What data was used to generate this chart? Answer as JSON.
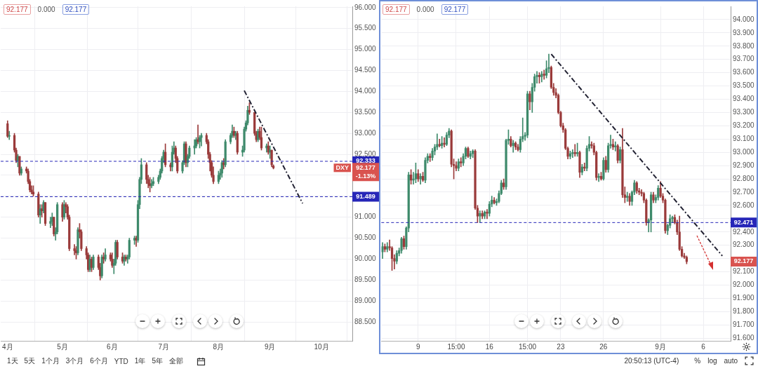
{
  "chart_data": [
    {
      "type": "candlestick",
      "x": [
        "--04-01",
        "--04-02",
        "--04-05",
        "--04-06",
        "--04-07",
        "--04-08",
        "--04-09",
        "--04-12",
        "--04-13",
        "--04-14",
        "--04-15",
        "--04-16",
        "--04-19",
        "--04-20",
        "--04-21",
        "--04-22",
        "--04-23",
        "--04-26",
        "--04-27",
        "--04-28",
        "--04-29",
        "--04-30",
        "--05-03",
        "--05-04",
        "--05-05",
        "--05-06",
        "--05-07",
        "--05-10",
        "--05-11",
        "--05-12",
        "--05-13",
        "--05-14",
        "--05-17",
        "--05-18",
        "--05-19",
        "--05-20",
        "--05-21",
        "--05-24",
        "--05-25",
        "--05-26",
        "--05-27",
        "--05-28",
        "--05-31",
        "--06-01",
        "--06-02",
        "--06-03",
        "--06-04",
        "--06-07",
        "--06-08",
        "--06-09",
        "--06-10",
        "--06-11",
        "--06-14",
        "--06-15",
        "--06-16",
        "--06-17",
        "--06-18",
        "--06-21",
        "--06-22",
        "--06-23",
        "--06-24",
        "--06-25",
        "--06-28",
        "--06-29",
        "--06-30",
        "--07-01",
        "--07-02",
        "--07-05",
        "--07-06",
        "--07-07",
        "--07-08",
        "--07-09",
        "--07-12",
        "--07-13",
        "--07-14",
        "--07-15",
        "--07-16",
        "--07-19",
        "--07-20",
        "--07-21",
        "--07-22",
        "--07-23",
        "--07-26",
        "--07-27",
        "--07-28",
        "--07-29",
        "--07-30",
        "--08-02",
        "--08-03",
        "--08-04",
        "--08-05",
        "--08-06",
        "--08-09",
        "--08-10",
        "--08-11",
        "--08-12",
        "--08-13",
        "--08-16",
        "--08-17",
        "--08-18",
        "--08-19",
        "--08-20",
        "--08-23",
        "--08-24",
        "--08-25",
        "--08-26",
        "--08-27",
        "--08-30",
        "--08-31",
        "--09-01",
        "--09-02",
        "--09-03"
      ],
      "ohlc": [
        [
          93.23,
          93.3,
          92.9,
          92.93
        ],
        [
          92.93,
          93.05,
          92.85,
          92.95
        ],
        [
          92.95,
          93.0,
          92.55,
          92.6
        ],
        [
          92.6,
          92.65,
          92.3,
          92.35
        ],
        [
          92.35,
          92.5,
          92.2,
          92.45
        ],
        [
          92.45,
          92.45,
          92.0,
          92.05
        ],
        [
          92.05,
          92.2,
          92.0,
          92.15
        ],
        [
          92.15,
          92.2,
          92.05,
          92.1
        ],
        [
          92.1,
          92.15,
          91.8,
          91.85
        ],
        [
          91.85,
          91.9,
          91.6,
          91.65
        ],
        [
          91.65,
          91.75,
          91.55,
          91.6
        ],
        [
          91.6,
          91.75,
          91.5,
          91.55
        ],
        [
          91.55,
          91.6,
          91.0,
          91.05
        ],
        [
          91.05,
          91.3,
          90.85,
          91.2
        ],
        [
          91.2,
          91.3,
          91.0,
          91.15
        ],
        [
          91.15,
          91.4,
          91.1,
          91.35
        ],
        [
          91.35,
          91.35,
          90.8,
          90.85
        ],
        [
          90.85,
          91.0,
          90.75,
          90.9
        ],
        [
          90.9,
          91.1,
          90.8,
          91.0
        ],
        [
          91.0,
          91.0,
          90.55,
          90.6
        ],
        [
          90.6,
          90.75,
          90.45,
          90.65
        ],
        [
          90.65,
          91.35,
          90.6,
          91.3
        ],
        [
          91.3,
          91.35,
          90.9,
          91.0
        ],
        [
          91.0,
          91.4,
          90.95,
          91.3
        ],
        [
          91.3,
          91.35,
          91.1,
          91.25
        ],
        [
          91.25,
          91.3,
          90.95,
          91.0
        ],
        [
          91.0,
          91.05,
          90.2,
          90.25
        ],
        [
          90.25,
          90.35,
          90.1,
          90.2
        ],
        [
          90.2,
          90.3,
          90.0,
          90.15
        ],
        [
          90.15,
          90.75,
          90.1,
          90.7
        ],
        [
          90.7,
          90.85,
          90.5,
          90.65
        ],
        [
          90.65,
          90.7,
          90.2,
          90.25
        ],
        [
          90.25,
          90.3,
          90.0,
          90.1
        ],
        [
          90.1,
          90.15,
          89.7,
          89.75
        ],
        [
          89.75,
          90.1,
          89.7,
          90.0
        ],
        [
          90.0,
          90.05,
          89.7,
          89.8
        ],
        [
          89.8,
          90.1,
          89.75,
          90.05
        ],
        [
          90.05,
          90.1,
          89.75,
          89.8
        ],
        [
          89.8,
          89.9,
          89.5,
          89.6
        ],
        [
          89.6,
          90.1,
          89.55,
          90.05
        ],
        [
          90.05,
          90.15,
          89.9,
          90.0
        ],
        [
          90.0,
          90.25,
          89.95,
          90.1
        ],
        [
          90.1,
          90.15,
          89.95,
          90.0
        ],
        [
          90.0,
          90.15,
          89.8,
          89.85
        ],
        [
          89.85,
          90.0,
          89.65,
          89.9
        ],
        [
          89.9,
          90.45,
          89.85,
          90.4
        ],
        [
          90.4,
          90.45,
          90.0,
          90.05
        ],
        [
          90.05,
          90.15,
          89.9,
          89.95
        ],
        [
          89.95,
          90.1,
          89.85,
          90.05
        ],
        [
          90.05,
          90.1,
          89.95,
          90.0
        ],
        [
          90.0,
          90.1,
          89.9,
          90.05
        ],
        [
          90.05,
          90.5,
          90.0,
          90.45
        ],
        [
          90.45,
          90.55,
          90.35,
          90.5
        ],
        [
          90.5,
          90.55,
          90.3,
          90.45
        ],
        [
          90.45,
          91.4,
          90.4,
          91.3
        ],
        [
          91.3,
          91.95,
          91.2,
          91.9
        ],
        [
          91.9,
          92.4,
          91.8,
          92.25
        ],
        [
          92.25,
          92.3,
          91.8,
          91.9
        ],
        [
          91.9,
          92.0,
          91.7,
          91.8
        ],
        [
          91.8,
          91.95,
          91.6,
          91.75
        ],
        [
          91.75,
          91.9,
          91.7,
          91.8
        ],
        [
          91.8,
          91.95,
          91.75,
          91.85
        ],
        [
          91.85,
          92.0,
          91.8,
          91.95
        ],
        [
          91.95,
          92.15,
          91.9,
          92.1
        ],
        [
          92.1,
          92.45,
          92.05,
          92.4
        ],
        [
          92.4,
          92.6,
          92.3,
          92.55
        ],
        [
          92.55,
          92.75,
          92.2,
          92.25
        ],
        [
          92.25,
          92.3,
          92.1,
          92.2
        ],
        [
          92.2,
          92.7,
          92.1,
          92.55
        ],
        [
          92.55,
          92.8,
          92.5,
          92.65
        ],
        [
          92.65,
          92.7,
          92.3,
          92.4
        ],
        [
          92.4,
          92.45,
          92.05,
          92.1
        ],
        [
          92.1,
          92.35,
          92.05,
          92.3
        ],
        [
          92.3,
          92.8,
          92.25,
          92.75
        ],
        [
          92.75,
          92.8,
          92.2,
          92.3
        ],
        [
          92.3,
          92.5,
          92.2,
          92.45
        ],
        [
          92.45,
          92.7,
          92.4,
          92.65
        ],
        [
          92.65,
          92.85,
          92.5,
          92.7
        ],
        [
          92.7,
          92.9,
          92.65,
          92.85
        ],
        [
          92.85,
          93.2,
          92.75,
          92.8
        ],
        [
          92.8,
          92.95,
          92.65,
          92.9
        ],
        [
          92.9,
          93.0,
          92.7,
          92.95
        ],
        [
          92.95,
          93.0,
          92.75,
          92.8
        ],
        [
          92.8,
          92.85,
          92.4,
          92.5
        ],
        [
          92.5,
          92.55,
          92.1,
          92.3
        ],
        [
          92.3,
          92.35,
          91.95,
          92.0
        ],
        [
          92.0,
          92.2,
          91.8,
          91.85
        ],
        [
          91.85,
          92.1,
          91.8,
          92.0
        ],
        [
          92.0,
          92.15,
          91.9,
          92.05
        ],
        [
          92.05,
          92.35,
          91.95,
          92.3
        ],
        [
          92.3,
          92.4,
          92.15,
          92.25
        ],
        [
          92.25,
          92.85,
          92.2,
          92.8
        ],
        [
          92.8,
          93.0,
          92.75,
          92.95
        ],
        [
          92.95,
          93.2,
          92.9,
          93.05
        ],
        [
          93.05,
          93.15,
          92.9,
          92.95
        ],
        [
          92.95,
          93.05,
          92.85,
          93.0
        ],
        [
          93.0,
          93.05,
          92.5,
          92.55
        ],
        [
          92.55,
          92.7,
          92.45,
          92.6
        ],
        [
          92.6,
          93.15,
          92.55,
          93.1
        ],
        [
          93.1,
          93.3,
          93.05,
          93.25
        ],
        [
          93.25,
          93.65,
          93.2,
          93.55
        ],
        [
          93.55,
          93.73,
          93.45,
          93.5
        ],
        [
          93.5,
          93.5,
          92.95,
          93.0
        ],
        [
          93.0,
          93.05,
          92.8,
          92.85
        ],
        [
          92.85,
          93.1,
          92.8,
          93.05
        ],
        [
          93.05,
          93.15,
          92.85,
          92.9
        ],
        [
          92.9,
          93.15,
          92.6,
          92.65
        ],
        [
          92.65,
          92.75,
          92.55,
          92.7
        ],
        [
          92.7,
          92.8,
          92.5,
          92.55
        ],
        [
          92.55,
          92.7,
          92.4,
          92.6
        ],
        [
          92.6,
          92.6,
          92.2,
          92.25
        ],
        [
          92.22,
          92.25,
          92.15,
          92.177
        ]
      ],
      "series": [
        {
          "type": "line",
          "color": "#222233",
          "line_style": "dashed",
          "x": [
            "--08-17",
            "--09-20"
          ],
          "values": [
            94.02,
            91.33
          ]
        }
      ],
      "xlim": [
        "--03-28",
        "--10-19"
      ],
      "xticks": [
        {
          "value": "--04-01",
          "label": "4月"
        },
        {
          "value": "--05-03",
          "label": "5月"
        },
        {
          "value": "--06-01",
          "label": "6月"
        },
        {
          "value": "--07-01",
          "label": "7月"
        },
        {
          "value": "--08-02",
          "label": "8月"
        },
        {
          "value": "--09-01",
          "label": "9月"
        },
        {
          "value": "--10-01",
          "label": "10月"
        }
      ],
      "ylim": [
        88.05,
        96.03
      ],
      "yticks": [
        {
          "value": 88.5,
          "label": "88.500"
        },
        {
          "value": 89,
          "label": "89.000"
        },
        {
          "value": 89.5,
          "label": "89.500"
        },
        {
          "value": 90,
          "label": "90.000"
        },
        {
          "value": 90.5,
          "label": "90.500"
        },
        {
          "value": 91,
          "label": "91.000"
        },
        {
          "value": 91.5,
          "label": null
        },
        {
          "value": 92,
          "label": null
        },
        {
          "value": 92.5,
          "label": "92.500"
        },
        {
          "value": 93,
          "label": "93.000"
        },
        {
          "value": 93.5,
          "label": "93.500"
        },
        {
          "value": 94,
          "label": "94.000"
        },
        {
          "value": 94.5,
          "label": "94.500"
        },
        {
          "value": 95,
          "label": "95.000"
        },
        {
          "value": 95.5,
          "label": "95.500"
        },
        {
          "value": 96,
          "label": "96.000"
        }
      ],
      "ref_lines": [
        {
          "axis": "y",
          "value": 92.333,
          "label": "92.333",
          "color": "#2626b8",
          "line_style": "dashed"
        },
        {
          "axis": "y",
          "value": 91.489,
          "label": "91.489",
          "color": "#2626b8",
          "line_style": "dashed"
        }
      ],
      "annotations": [
        "92.177",
        "0.000",
        "92.177",
        "92.177",
        "-1.13%",
        "DXY",
        "1天",
        "5天",
        "1个月",
        "3个月",
        "6个月",
        "YTD",
        "1年",
        "5年",
        "全部"
      ],
      "grid": true
    },
    {
      "type": "candlestick",
      "categories": [
        null,
        null,
        null,
        null,
        null,
        null,
        null,
        null,
        null,
        null,
        null,
        null,
        null,
        null,
        null,
        "9",
        null,
        null,
        null,
        null,
        null,
        null,
        null,
        null,
        null,
        null,
        null,
        null,
        null,
        null,
        null,
        "15:00",
        null,
        null,
        null,
        null,
        null,
        null,
        null,
        null,
        null,
        null,
        null,
        null,
        null,
        "16",
        null,
        null,
        null,
        null,
        null,
        null,
        null,
        null,
        null,
        null,
        null,
        null,
        null,
        null,
        null,
        "15:00",
        null,
        null,
        null,
        null,
        null,
        null,
        null,
        null,
        null,
        null,
        null,
        null,
        null,
        "23",
        null,
        null,
        null,
        null,
        null,
        null,
        null,
        null,
        null,
        null,
        null,
        null,
        null,
        null,
        null,
        null,
        null,
        "26",
        null,
        null,
        null,
        null,
        null,
        null,
        null,
        null,
        null,
        null,
        null,
        null,
        null,
        null,
        null,
        null,
        null,
        null,
        null,
        null,
        null,
        null,
        null,
        "9月",
        null,
        null,
        null,
        null,
        null,
        null,
        null,
        null,
        null,
        null,
        null,
        null,
        null,
        null,
        null,
        null,
        null,
        "6",
        null,
        null,
        null,
        null,
        null,
        null,
        null,
        null,
        null,
        null,
        null
      ],
      "ohlc": [
        [
          92.25,
          92.32,
          92.2,
          92.29
        ],
        [
          92.29,
          92.31,
          92.25,
          92.27
        ],
        [
          92.27,
          92.32,
          92.25,
          92.29
        ],
        [
          92.29,
          92.34,
          92.26,
          92.28
        ],
        [
          92.28,
          92.29,
          92.11,
          92.2
        ],
        [
          92.2,
          92.23,
          92.12,
          92.18
        ],
        [
          92.18,
          92.26,
          92.16,
          92.24
        ],
        [
          92.24,
          92.28,
          92.22,
          92.26
        ],
        [
          92.26,
          92.36,
          92.24,
          92.35
        ],
        [
          92.35,
          92.37,
          92.27,
          92.29
        ],
        [
          92.29,
          92.44,
          92.27,
          92.43
        ],
        [
          92.43,
          92.85,
          92.4,
          92.83
        ],
        [
          92.83,
          92.87,
          92.76,
          92.79
        ],
        [
          92.79,
          92.85,
          92.76,
          92.8
        ],
        [
          92.8,
          92.92,
          92.77,
          92.84
        ],
        [
          92.84,
          92.87,
          92.78,
          92.8
        ],
        [
          92.8,
          92.84,
          92.76,
          92.82
        ],
        [
          92.82,
          92.85,
          92.78,
          92.79
        ],
        [
          92.79,
          92.96,
          92.77,
          92.94
        ],
        [
          92.94,
          92.99,
          92.92,
          92.97
        ],
        [
          92.97,
          92.99,
          92.93,
          92.96
        ],
        [
          92.96,
          93.03,
          92.94,
          93.01
        ],
        [
          93.01,
          93.06,
          92.98,
          93.04
        ],
        [
          93.04,
          93.14,
          93.02,
          93.06
        ],
        [
          93.06,
          93.1,
          93.04,
          93.05
        ],
        [
          93.05,
          93.12,
          93.03,
          93.07
        ],
        [
          93.07,
          93.11,
          93.04,
          93.06
        ],
        [
          93.06,
          93.15,
          93.05,
          93.13
        ],
        [
          93.13,
          93.18,
          93.11,
          93.16
        ],
        [
          93.16,
          93.17,
          92.89,
          92.91
        ],
        [
          92.91,
          92.95,
          92.8,
          92.9
        ],
        [
          92.9,
          92.93,
          92.86,
          92.88
        ],
        [
          92.88,
          92.95,
          92.86,
          92.93
        ],
        [
          92.93,
          92.96,
          92.89,
          92.92
        ],
        [
          92.92,
          92.99,
          92.9,
          92.97
        ],
        [
          92.97,
          93.04,
          92.95,
          93.03
        ],
        [
          93.03,
          93.04,
          92.96,
          92.97
        ],
        [
          92.97,
          93.01,
          92.95,
          92.99
        ],
        [
          92.99,
          93.02,
          92.96,
          93.01
        ],
        [
          93.01,
          93.02,
          92.57,
          92.58
        ],
        [
          92.58,
          92.6,
          92.47,
          92.52
        ],
        [
          92.52,
          92.56,
          92.47,
          92.54
        ],
        [
          92.54,
          92.56,
          92.5,
          92.52
        ],
        [
          92.52,
          92.56,
          92.5,
          92.55
        ],
        [
          92.55,
          92.57,
          92.5,
          92.54
        ],
        [
          92.54,
          92.63,
          92.52,
          92.61
        ],
        [
          92.61,
          92.67,
          92.59,
          92.64
        ],
        [
          92.64,
          92.66,
          92.61,
          92.62
        ],
        [
          92.62,
          92.65,
          92.6,
          92.63
        ],
        [
          92.63,
          92.71,
          92.62,
          92.69
        ],
        [
          92.69,
          92.79,
          92.68,
          92.77
        ],
        [
          92.77,
          92.8,
          92.72,
          92.74
        ],
        [
          92.74,
          93.1,
          92.72,
          93.09
        ],
        [
          93.09,
          93.17,
          93.06,
          93.1
        ],
        [
          93.1,
          93.12,
          93.04,
          93.05
        ],
        [
          93.05,
          93.09,
          93.0,
          93.07
        ],
        [
          93.07,
          93.08,
          93.02,
          93.04
        ],
        [
          93.04,
          93.06,
          93.01,
          93.02
        ],
        [
          93.02,
          93.12,
          93.0,
          93.1
        ],
        [
          93.1,
          93.26,
          93.08,
          93.12
        ],
        [
          93.12,
          93.15,
          93.09,
          93.13
        ],
        [
          93.13,
          93.46,
          93.11,
          93.44
        ],
        [
          93.44,
          93.46,
          93.32,
          93.38
        ],
        [
          93.38,
          93.52,
          93.3,
          93.49
        ],
        [
          93.49,
          93.59,
          93.46,
          93.57
        ],
        [
          93.57,
          93.61,
          93.52,
          93.58
        ],
        [
          93.58,
          93.6,
          93.52,
          93.57
        ],
        [
          93.57,
          93.61,
          93.53,
          93.59
        ],
        [
          93.59,
          93.62,
          93.55,
          93.58
        ],
        [
          93.58,
          93.69,
          93.56,
          93.63
        ],
        [
          93.63,
          93.74,
          93.6,
          93.64
        ],
        [
          93.64,
          93.65,
          93.48,
          93.49
        ],
        [
          93.49,
          93.52,
          93.43,
          93.45
        ],
        [
          93.45,
          93.48,
          93.41,
          93.43
        ],
        [
          93.43,
          93.44,
          93.29,
          93.3
        ],
        [
          93.3,
          93.31,
          93.19,
          93.2
        ],
        [
          93.2,
          93.22,
          93.15,
          93.17
        ],
        [
          93.17,
          93.18,
          93.02,
          93.03
        ],
        [
          93.03,
          93.04,
          92.95,
          92.97
        ],
        [
          92.97,
          93.01,
          92.95,
          92.99
        ],
        [
          92.99,
          93.02,
          92.96,
          93.0
        ],
        [
          93.0,
          93.06,
          92.97,
          92.99
        ],
        [
          92.99,
          93.07,
          92.97,
          93.0
        ],
        [
          93.0,
          93.01,
          92.81,
          92.85
        ],
        [
          92.85,
          92.91,
          92.83,
          92.89
        ],
        [
          92.89,
          92.92,
          92.86,
          92.88
        ],
        [
          92.88,
          93.05,
          92.86,
          93.03
        ],
        [
          93.03,
          93.12,
          93.01,
          93.06
        ],
        [
          93.06,
          93.08,
          93.03,
          93.05
        ],
        [
          93.05,
          93.07,
          92.98,
          93.0
        ],
        [
          93.0,
          93.01,
          92.79,
          92.81
        ],
        [
          92.81,
          92.84,
          92.78,
          92.82
        ],
        [
          92.82,
          92.85,
          92.79,
          92.8
        ],
        [
          92.8,
          92.96,
          92.79,
          92.94
        ],
        [
          92.94,
          92.97,
          92.85,
          92.87
        ],
        [
          92.87,
          93.07,
          92.85,
          93.05
        ],
        [
          93.05,
          93.13,
          93.03,
          93.06
        ],
        [
          93.06,
          93.1,
          93.02,
          93.04
        ],
        [
          93.04,
          93.08,
          93.01,
          93.05
        ],
        [
          93.05,
          93.06,
          92.92,
          92.94
        ],
        [
          92.94,
          93.04,
          92.92,
          93.02
        ],
        [
          93.02,
          93.18,
          92.66,
          92.68
        ],
        [
          92.68,
          92.74,
          92.62,
          92.66
        ],
        [
          92.66,
          92.7,
          92.63,
          92.67
        ],
        [
          92.67,
          92.69,
          92.6,
          92.63
        ],
        [
          92.63,
          92.71,
          92.6,
          92.7
        ],
        [
          92.7,
          92.79,
          92.68,
          92.77
        ],
        [
          92.77,
          92.78,
          92.69,
          92.71
        ],
        [
          92.71,
          92.73,
          92.68,
          92.7
        ],
        [
          92.7,
          92.72,
          92.67,
          92.69
        ],
        [
          92.69,
          92.7,
          92.62,
          92.64
        ],
        [
          92.64,
          92.65,
          92.45,
          92.47
        ],
        [
          92.47,
          92.5,
          92.4,
          92.49
        ],
        [
          92.49,
          92.7,
          92.4,
          92.68
        ],
        [
          92.68,
          92.7,
          92.62,
          92.64
        ],
        [
          92.64,
          92.68,
          92.62,
          92.66
        ],
        [
          92.66,
          92.75,
          92.64,
          92.73
        ],
        [
          92.73,
          92.78,
          92.66,
          92.67
        ],
        [
          92.67,
          92.69,
          92.62,
          92.64
        ],
        [
          92.64,
          92.65,
          92.39,
          92.41
        ],
        [
          92.41,
          92.46,
          92.38,
          92.45
        ],
        [
          92.45,
          92.53,
          92.43,
          92.5
        ],
        [
          92.5,
          92.52,
          92.47,
          92.51
        ],
        [
          92.51,
          92.53,
          92.46,
          92.47
        ],
        [
          92.47,
          92.49,
          92.38,
          92.4
        ],
        [
          92.4,
          92.52,
          92.26,
          92.27
        ],
        [
          92.27,
          92.29,
          92.21,
          92.22
        ],
        [
          92.22,
          92.24,
          92.2,
          92.21
        ],
        [
          92.21,
          92.22,
          92.16,
          92.177
        ],
        null,
        null,
        null,
        null,
        null,
        null,
        null,
        null,
        null,
        null,
        null,
        null,
        null,
        null,
        null,
        null,
        null,
        null
      ],
      "series": [
        {
          "type": "line",
          "color": "#222233",
          "line_style": "dashed",
          "values": [
            null,
            null,
            null,
            null,
            null,
            null,
            null,
            null,
            null,
            null,
            null,
            null,
            null,
            null,
            null,
            null,
            null,
            null,
            null,
            null,
            null,
            null,
            null,
            null,
            null,
            null,
            null,
            null,
            null,
            null,
            null,
            null,
            null,
            null,
            null,
            null,
            null,
            null,
            null,
            null,
            null,
            null,
            null,
            null,
            null,
            null,
            null,
            null,
            null,
            null,
            null,
            null,
            null,
            null,
            null,
            null,
            null,
            null,
            null,
            null,
            null,
            null,
            null,
            null,
            null,
            null,
            null,
            null,
            null,
            null,
            null,
            93.74,
            null,
            null,
            null,
            null,
            null,
            null,
            null,
            null,
            null,
            null,
            null,
            null,
            null,
            null,
            null,
            null,
            null,
            null,
            null,
            null,
            null,
            null,
            null,
            null,
            null,
            null,
            null,
            null,
            null,
            null,
            null,
            null,
            null,
            null,
            null,
            null,
            null,
            null,
            null,
            null,
            null,
            null,
            null,
            null,
            null,
            null,
            null,
            null,
            null,
            null,
            null,
            null,
            null,
            null,
            null,
            null,
            null,
            null,
            null,
            null,
            null,
            null,
            null,
            null,
            null,
            null,
            null,
            null,
            null,
            null,
            null,
            92.22,
            null,
            null,
            null
          ]
        }
      ],
      "ylim": [
        91.58,
        94.1
      ],
      "yticks": [
        {
          "value": 91.6,
          "label": "91.600"
        },
        {
          "value": 91.7,
          "label": "91.700"
        },
        {
          "value": 91.8,
          "label": "91.800"
        },
        {
          "value": 91.9,
          "label": "91.900"
        },
        {
          "value": 92,
          "label": "92.000"
        },
        {
          "value": 92.1,
          "label": "92.100"
        },
        {
          "value": 92.2,
          "label": null
        },
        {
          "value": 92.3,
          "label": "92.300"
        },
        {
          "value": 92.4,
          "label": "92.400"
        },
        {
          "value": 92.5,
          "label": null
        },
        {
          "value": 92.6,
          "label": "92.600"
        },
        {
          "value": 92.7,
          "label": "92.700"
        },
        {
          "value": 92.8,
          "label": "92.800"
        },
        {
          "value": 92.9,
          "label": "92.900"
        },
        {
          "value": 93,
          "label": "93.000"
        },
        {
          "value": 93.1,
          "label": "93.100"
        },
        {
          "value": 93.2,
          "label": "93.200"
        },
        {
          "value": 93.3,
          "label": "93.300"
        },
        {
          "value": 93.4,
          "label": "93.400"
        },
        {
          "value": 93.5,
          "label": "93.500"
        },
        {
          "value": 93.6,
          "label": "93.600"
        },
        {
          "value": 93.7,
          "label": "93.700"
        },
        {
          "value": 93.8,
          "label": "93.800"
        },
        {
          "value": 93.9,
          "label": "93.900"
        },
        {
          "value": 94,
          "label": "94.000"
        }
      ],
      "ref_lines": [
        {
          "axis": "y",
          "value": 92.471,
          "label": "92.471",
          "color": "#2626b8",
          "line_style": "dashed"
        }
      ],
      "annotations": [
        "92.177",
        "0.000",
        "92.177",
        "92.177",
        "20:50:13 (UTC-4)",
        "%",
        "log",
        "auto"
      ],
      "grid": true
    }
  ]
}
